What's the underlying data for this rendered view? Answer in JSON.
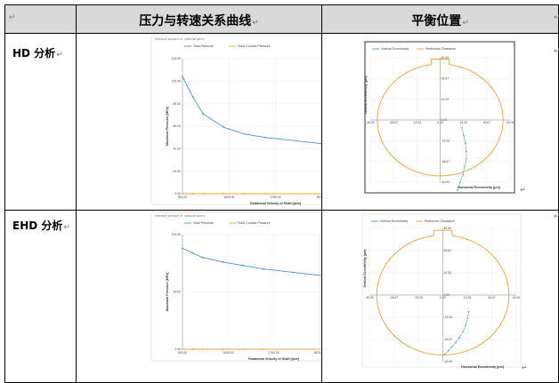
{
  "table": {
    "corner_mark": "↵",
    "headers": [
      "压力与转速关系曲线",
      "平衡位置"
    ],
    "header_mark": "↵",
    "rows": [
      {
        "label": "HD 分析",
        "mark": "↵"
      },
      {
        "label": "EHD 分析",
        "mark": "↵"
      }
    ],
    "right_edge_marks": [
      "↵",
      "↵",
      "↵"
    ]
  },
  "colors": {
    "header_bg": "#d9d9d9",
    "series_blue": "#4a90d9",
    "series_orange": "#f0a030",
    "grid": "#e6e6e6",
    "frame": "#555555"
  },
  "chart_data": [
    {
      "type": "line",
      "window_title": "Maximum pressure vs. rotational speed",
      "series": [
        {
          "name": "Total Pressure",
          "x": [
            500,
            750,
            1000,
            1500,
            2000,
            2500,
            4000,
            5000
          ],
          "values": [
            104,
            86,
            71,
            59,
            53,
            50,
            44,
            38
          ]
        },
        {
          "name": "Solid Contact Pressure",
          "x": [
            500,
            750,
            1000,
            1500,
            2000,
            2500,
            4000,
            5000
          ],
          "values": [
            0,
            0,
            0,
            0,
            0,
            0,
            0,
            0
          ]
        }
      ],
      "xlabel": "Rotational Velocity of Shaft [rpm]",
      "ylabel": "Maximum Pressure [MPa]",
      "xlim": [
        500,
        5000
      ],
      "ylim": [
        0,
        120
      ],
      "xticks": [
        "500.00",
        "1625.00",
        "2750.00",
        "3875.00",
        "5000.00"
      ],
      "yticks": [
        "120.00",
        "100.00",
        "80.00",
        "60.00",
        "40.00",
        "20.00",
        "0.00"
      ],
      "legend": "top-left",
      "grid": true
    },
    {
      "type": "line",
      "series": [
        {
          "name": "Vertical Eccentricity",
          "x": [
            12.5,
            13.5,
            14.5,
            15.0,
            15.0,
            14.0,
            13.0,
            11.5,
            10.0
          ],
          "values": [
            -5,
            -10,
            -15,
            -20,
            -25,
            -30,
            -35,
            -40,
            -45
          ]
        },
        {
          "name": "Reference Clearance"
        }
      ],
      "xlabel": "Horizontal Eccentricity [μm]",
      "ylabel": "Vertical Eccentricity [μm]",
      "xlim": [
        -40,
        40
      ],
      "ylim": [
        -40,
        40
      ],
      "xticks": [
        "-40.00",
        "-26.67",
        "-13.33",
        "0.00",
        "13.33",
        "26.67",
        "40.00"
      ],
      "yticks": [
        "40.00",
        "26.67",
        "13.33",
        "0.00",
        "-13.33",
        "-26.67",
        "-40.00"
      ],
      "legend": "top-left",
      "grid": true
    },
    {
      "type": "line",
      "window_title": "Maximum pressure vs. rotational speed",
      "series": [
        {
          "name": "Total Pressure",
          "x": [
            500,
            750,
            1000,
            1500,
            2000,
            2500,
            4000,
            5000
          ],
          "values": [
            88,
            84,
            80,
            76,
            73,
            70,
            64,
            58
          ]
        },
        {
          "name": "Solid Contact Pressure",
          "x": [
            500,
            750,
            1000,
            1500,
            2000,
            2500,
            4000,
            5000
          ],
          "values": [
            0,
            0,
            0,
            0,
            0,
            0,
            0,
            0
          ]
        }
      ],
      "xlabel": "Rotational Velocity of Shaft [rpm]",
      "ylabel": "Maximum Pressure [MPa]",
      "xlim": [
        500,
        5000
      ],
      "ylim": [
        0,
        100
      ],
      "xticks": [
        "500.00",
        "1625.00",
        "2750.00",
        "3875.00",
        "5000.00"
      ],
      "yticks": [
        "100.00",
        "60.00",
        "0.00"
      ],
      "legend": "top-left",
      "grid": true
    },
    {
      "type": "line",
      "series": [
        {
          "name": "Vertical Eccentricity",
          "x": [
            14,
            13.5,
            12.5,
            11,
            9,
            7,
            5,
            3,
            1
          ],
          "values": [
            -10,
            -14,
            -18,
            -22,
            -25.5,
            -28.5,
            -31,
            -33.5,
            -35.5
          ]
        },
        {
          "name": "Reference Clearance"
        }
      ],
      "xlabel": "Horizontal Eccentricity [μm]",
      "ylabel": "Vertical Eccentricity [μm]",
      "xlim": [
        -40,
        40
      ],
      "ylim": [
        -40,
        40
      ],
      "xticks": [
        "-40.00",
        "-26.67",
        "-13.33",
        "0.00",
        "13.33",
        "26.67",
        "40.00"
      ],
      "yticks": [
        "40.00",
        "26.67",
        "13.33",
        "0.00",
        "-13.33",
        "-26.67",
        "-40.00"
      ],
      "legend": "top-left",
      "grid": true
    }
  ]
}
